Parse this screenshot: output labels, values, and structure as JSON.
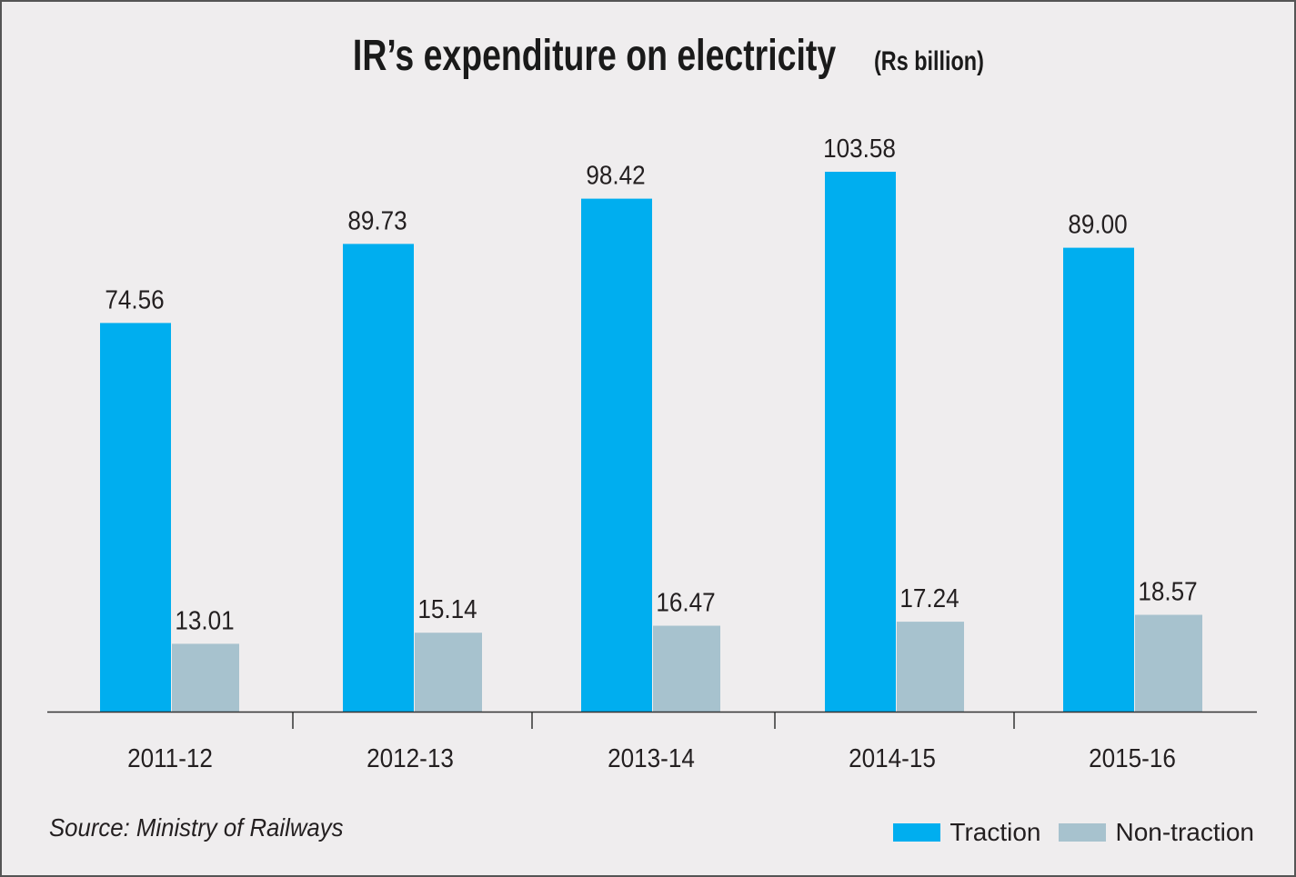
{
  "chart_data": {
    "type": "bar",
    "title": "IR’s expenditure on electricity",
    "unit": "(Rs billion)",
    "categories": [
      "2011-12",
      "2012-13",
      "2013-14",
      "2014-15",
      "2015-16"
    ],
    "series": [
      {
        "name": "Traction",
        "color": "#00aeef",
        "values": [
          74.56,
          89.73,
          98.42,
          103.58,
          89.0
        ],
        "labels": [
          "74.56",
          "89.73",
          "98.42",
          "103.58",
          "89.00"
        ]
      },
      {
        "name": "Non-traction",
        "color": "#a7c2ce",
        "values": [
          13.01,
          15.14,
          16.47,
          17.24,
          18.57
        ],
        "labels": [
          "13.01",
          "15.14",
          "16.47",
          "17.24",
          "18.57"
        ]
      }
    ],
    "xlabel": "",
    "ylabel": "",
    "ylim": [
      0,
      103.58
    ],
    "grid": false,
    "legend_position": "bottom-right"
  },
  "source": "Source: Ministry of Railways"
}
